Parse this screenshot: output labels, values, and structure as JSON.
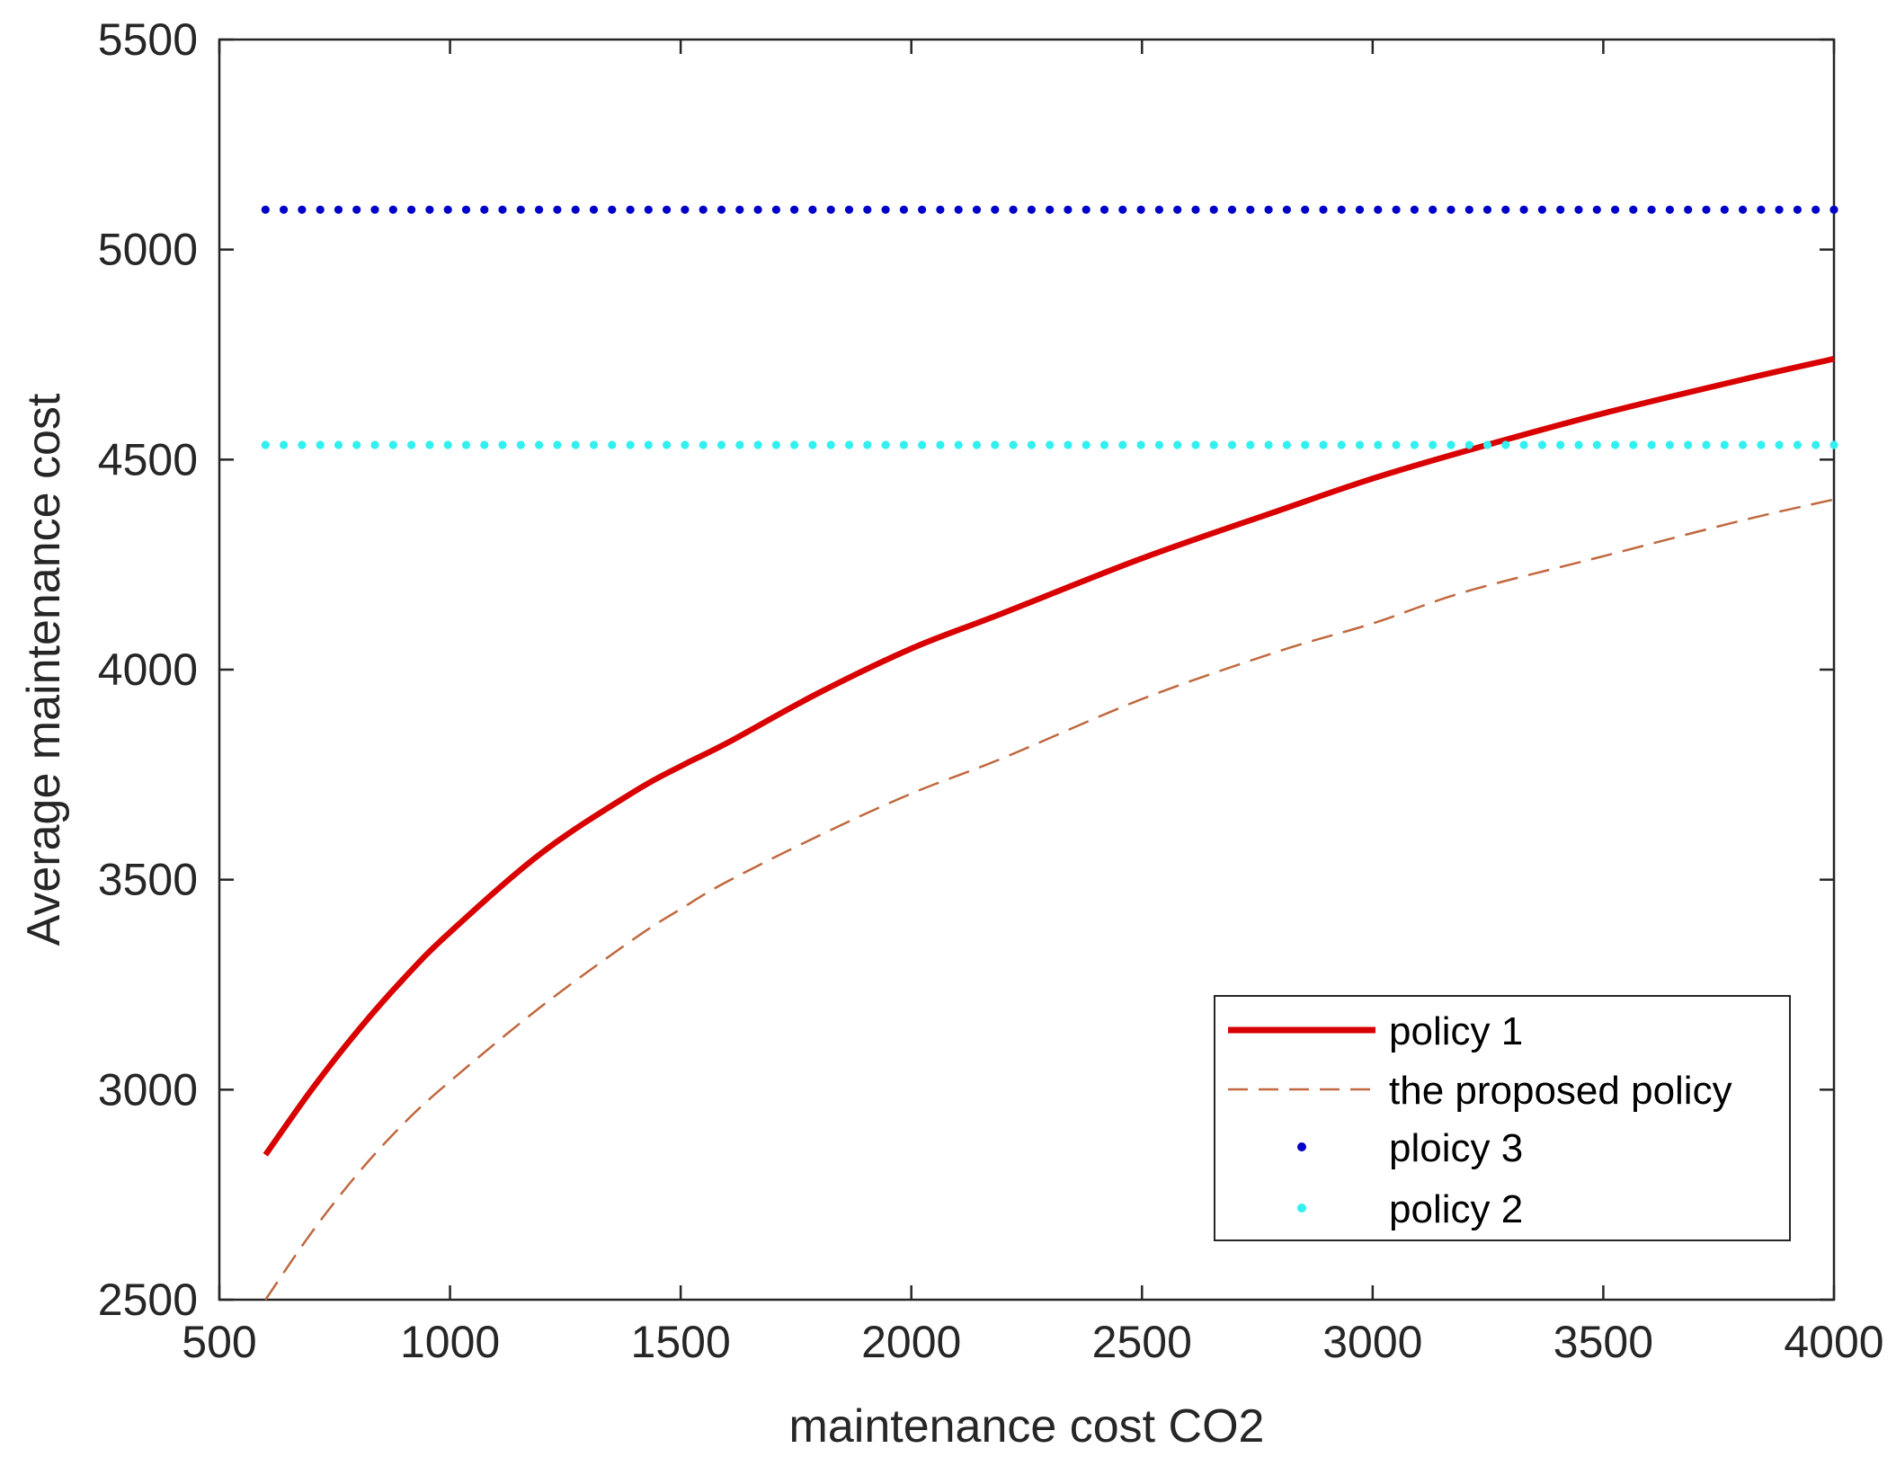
{
  "chart_data": {
    "type": "line",
    "title": "",
    "xlabel": "maintenance cost CO2",
    "ylabel": "Average maintenance cost",
    "xlim": [
      500,
      4000
    ],
    "ylim": [
      2500,
      5500
    ],
    "xticks": [
      500,
      1000,
      1500,
      2000,
      2500,
      3000,
      3500,
      4000
    ],
    "yticks": [
      2500,
      3000,
      3500,
      4000,
      4500,
      5000,
      5500
    ],
    "grid": false,
    "legend_position": "bottom-right",
    "series": [
      {
        "name": "policy 1",
        "style": "solid",
        "color": "#d90000",
        "x": [
          600,
          700,
          800,
          900,
          1000,
          1200,
          1400,
          1500,
          1600,
          1800,
          2000,
          2200,
          2500,
          2800,
          3000,
          3200,
          3500,
          3800,
          4000
        ],
        "y": [
          2845,
          3000,
          3140,
          3265,
          3375,
          3565,
          3710,
          3770,
          3825,
          3945,
          4050,
          4135,
          4265,
          4380,
          4455,
          4520,
          4610,
          4690,
          4740
        ]
      },
      {
        "name": "the proposed policy",
        "style": "dashed",
        "color": "#c0683e",
        "x": [
          600,
          700,
          800,
          900,
          1000,
          1200,
          1400,
          1500,
          1600,
          1800,
          2000,
          2200,
          2500,
          2800,
          3000,
          3200,
          3500,
          3800,
          4000
        ],
        "y": [
          2500,
          2660,
          2800,
          2920,
          3020,
          3200,
          3360,
          3430,
          3495,
          3605,
          3705,
          3790,
          3930,
          4045,
          4110,
          4185,
          4270,
          4355,
          4405
        ]
      },
      {
        "name": "ploicy 3",
        "style": "dotted",
        "color": "#0000c8",
        "x": [
          600,
          4000
        ],
        "y": [
          5095,
          5095
        ]
      },
      {
        "name": "policy 2",
        "style": "dotted",
        "color": "#33f0f0",
        "x": [
          600,
          4000
        ],
        "y": [
          4535,
          4535
        ]
      }
    ]
  }
}
